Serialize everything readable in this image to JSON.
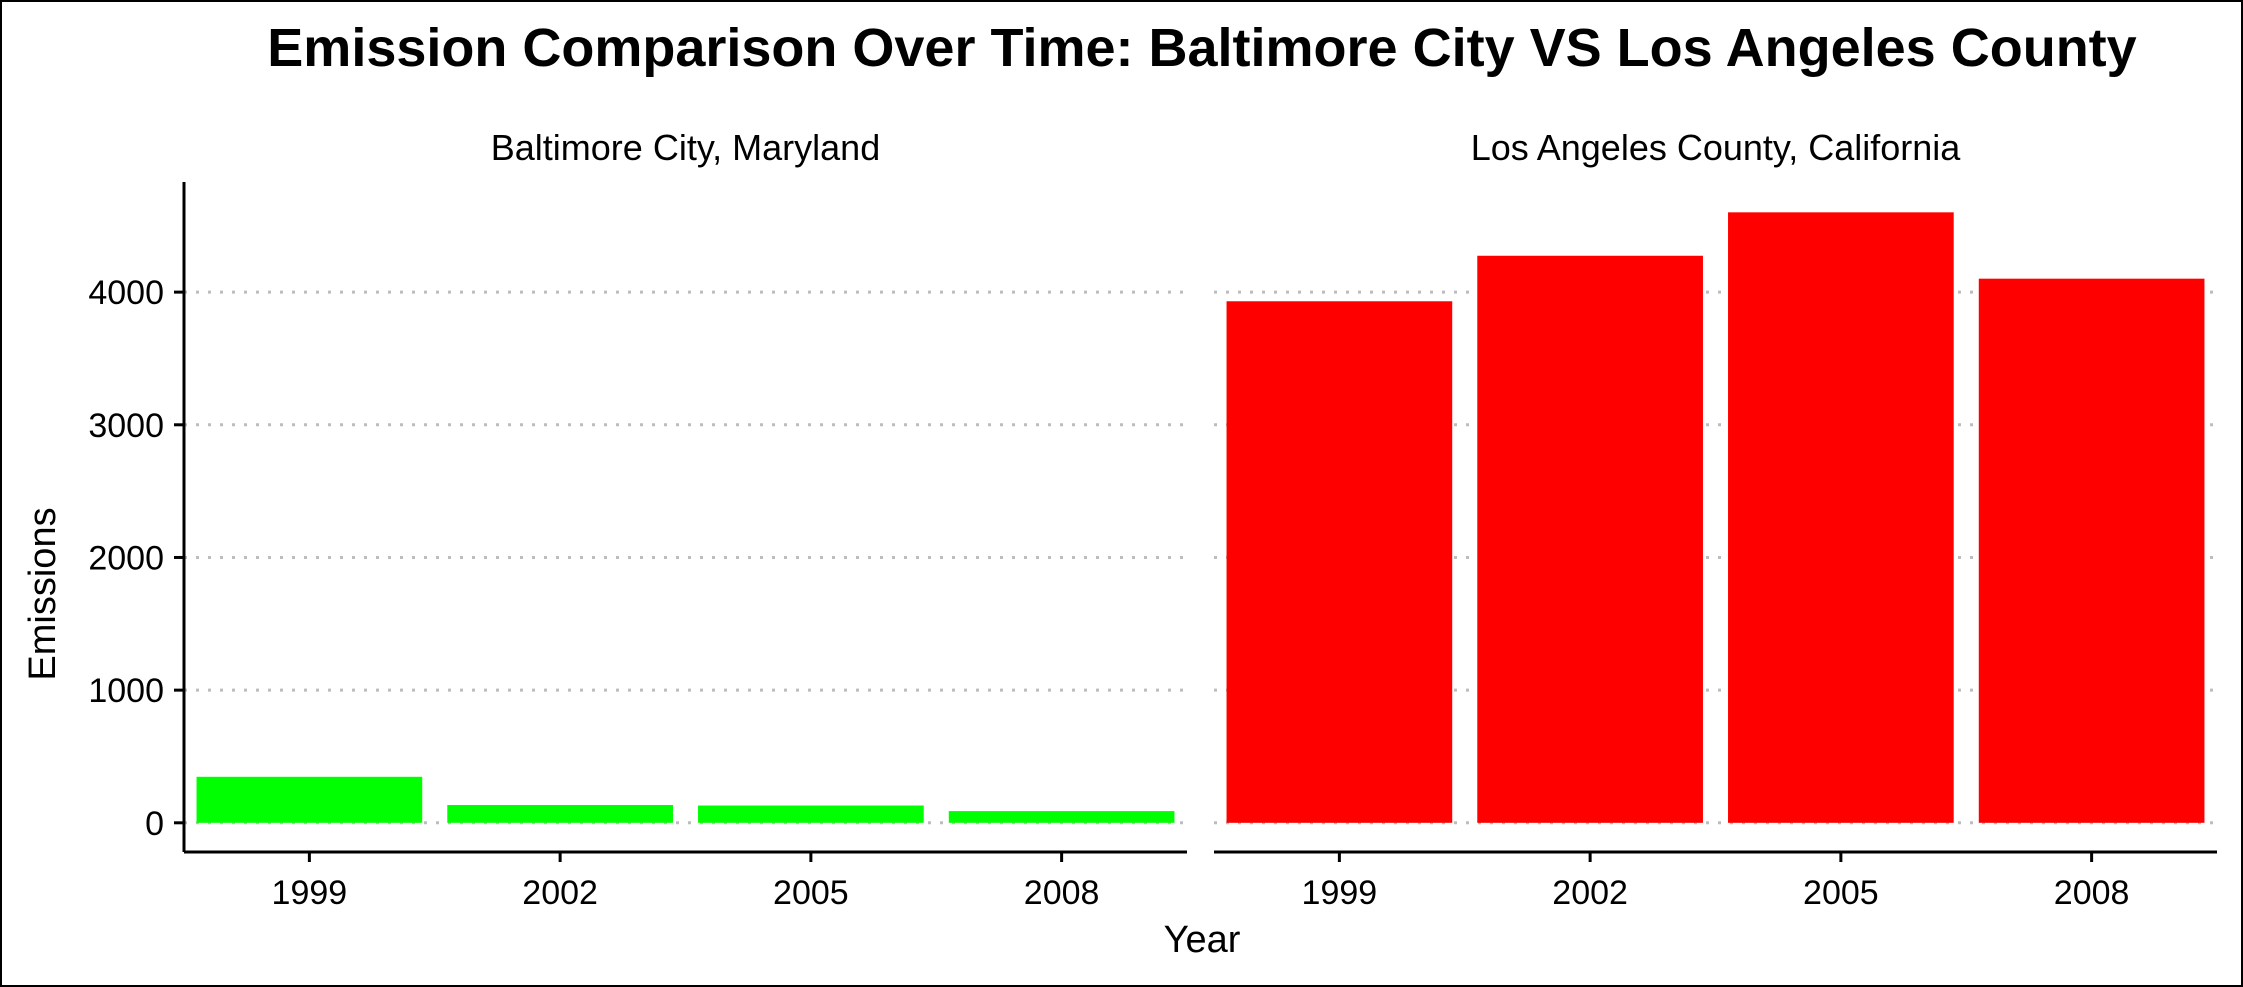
{
  "chart_data": {
    "type": "bar",
    "title": "Emission Comparison Over Time: Baltimore City VS Los Angeles County",
    "xlabel": "Year",
    "ylabel": "Emissions",
    "categories": [
      "1999",
      "2002",
      "2005",
      "2008"
    ],
    "ylim": [
      -220,
      4830
    ],
    "yticks": [
      0,
      1000,
      2000,
      3000,
      4000
    ],
    "grid": "horizontal dotted",
    "legend": "none",
    "panels": [
      {
        "name": "Baltimore City, Maryland",
        "color": "#00ff00",
        "values": [
          346.8,
          134.3,
          130.4,
          88.3
        ]
      },
      {
        "name": "Los Angeles County, California",
        "color": "#ff0000",
        "values": [
          3931.1,
          4274.0,
          4601.4,
          4101.3
        ]
      }
    ]
  }
}
